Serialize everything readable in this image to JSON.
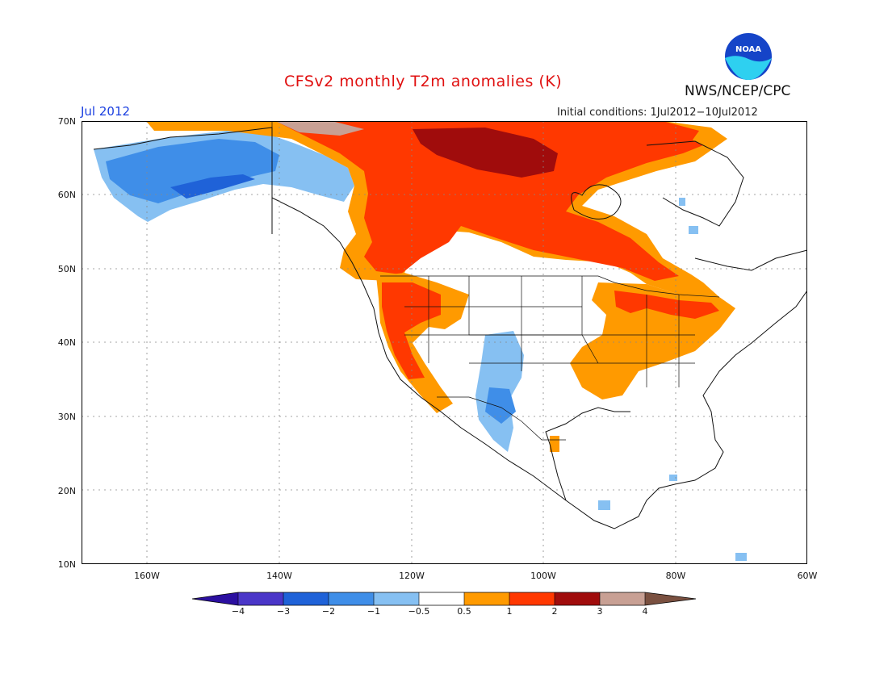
{
  "header": {
    "title": "CFSv2 monthly T2m anomalies (K)",
    "month": "Jul 2012",
    "initial_conditions": "Initial conditions: 1Jul2012−10Jul2012",
    "agency": "NWS/NCEP/CPC",
    "logo_text": "NOAA"
  },
  "map": {
    "lat_range": [
      10,
      70
    ],
    "lon_range": [
      -170,
      -60
    ],
    "lat_ticks": [
      "70N",
      "60N",
      "50N",
      "40N",
      "30N",
      "20N",
      "10N"
    ],
    "lon_ticks": [
      "160W",
      "140W",
      "120W",
      "100W",
      "80W",
      "60W"
    ],
    "gridlines": "dotted"
  },
  "colorbar": {
    "labels": [
      "−4",
      "−3",
      "−2",
      "−1",
      "−0.5",
      "0.5",
      "1",
      "2",
      "3",
      "4"
    ],
    "colors": [
      "#2b0fa0",
      "#4a36c8",
      "#1f62d8",
      "#3f8ee8",
      "#86c0f2",
      "#ffffff",
      "#ff9a00",
      "#ff3800",
      "#a00c0c",
      "#c8a094",
      "#7a5040"
    ]
  },
  "anomaly_regions": [
    {
      "name": "alaska-cool",
      "category": "-2 to -1",
      "color": "#3f8ee8"
    },
    {
      "name": "canada-warm",
      "category": "1 to 2",
      "color": "#ff3800"
    },
    {
      "name": "hudson-very-warm",
      "category": "2 to 3",
      "color": "#a00c0c"
    },
    {
      "name": "southwest-cool",
      "category": "-1 to -0.5",
      "color": "#86c0f2"
    },
    {
      "name": "east-mild-warm",
      "category": "0.5 to 1",
      "color": "#ff9a00"
    }
  ]
}
